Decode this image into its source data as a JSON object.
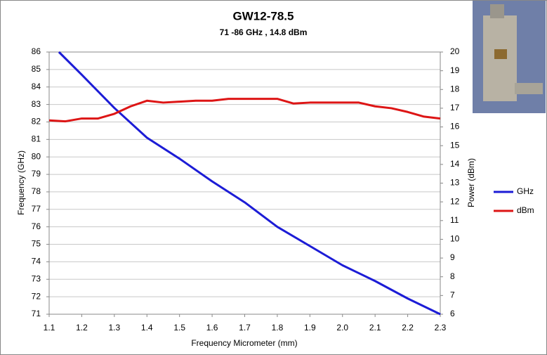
{
  "chart_data": {
    "type": "line",
    "title": "GW12-78.5",
    "subtitle": "71  -86 GHz , 14.8 dBm",
    "x_label": "Frequency Micrometer (mm)",
    "y_label": "Frequency (GHz)",
    "y2_label": "Power (dBm)",
    "xlim": [
      1.1,
      2.3
    ],
    "xticks": [
      1.1,
      1.2,
      1.3,
      1.4,
      1.5,
      1.6,
      1.7,
      1.8,
      1.9,
      {
        "value": 2,
        "label": "2.0"
      },
      2.1,
      2.2,
      2.3
    ],
    "ylim": [
      71,
      86
    ],
    "yticks": [
      71,
      72,
      73,
      74,
      75,
      76,
      77,
      78,
      79,
      80,
      81,
      82,
      83,
      84,
      85,
      86
    ],
    "y2lim": [
      6,
      20
    ],
    "y2ticks": [
      6,
      7,
      8,
      9,
      10,
      11,
      12,
      13,
      14,
      15,
      16,
      17,
      18,
      19,
      20
    ],
    "grid": true,
    "legend": "right",
    "series": [
      {
        "name": "GHz",
        "color": "#1c1cd6",
        "x": [
          1.13,
          1.2,
          1.3,
          1.4,
          1.5,
          1.6,
          1.7,
          1.8,
          1.9,
          2.0,
          2.1,
          2.2,
          2.3
        ],
        "values": [
          86,
          84.7,
          82.8,
          81.1,
          79.9,
          78.6,
          77.4,
          76.0,
          74.9,
          73.8,
          72.9,
          71.9,
          71
        ]
      },
      {
        "name": "dBm",
        "color": "#dd1515",
        "axis": "y2",
        "x": [
          1.1,
          1.15,
          1.2,
          1.25,
          1.3,
          1.35,
          1.4,
          1.45,
          1.5,
          1.55,
          1.6,
          1.65,
          1.7,
          1.75,
          1.8,
          1.85,
          1.9,
          1.95,
          2.0,
          2.05,
          2.1,
          2.15,
          2.2,
          2.25,
          2.3
        ],
        "values": [
          16.35,
          16.3,
          16.45,
          16.45,
          16.7,
          17.1,
          17.4,
          17.3,
          17.35,
          17.4,
          17.4,
          17.5,
          17.5,
          17.5,
          17.5,
          17.25,
          17.3,
          17.3,
          17.3,
          17.3,
          17.1,
          17.0,
          16.8,
          16.55,
          16.45
        ]
      }
    ]
  }
}
